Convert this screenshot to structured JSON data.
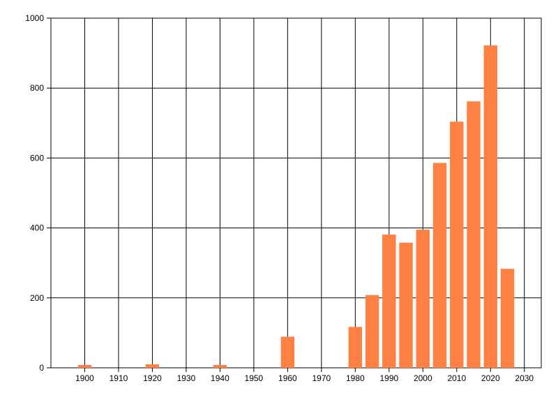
{
  "chart_data": {
    "type": "bar",
    "title": "",
    "xlabel": "",
    "ylabel": "",
    "legend": null,
    "grid": true,
    "background_color": "#ffffff",
    "bar_color": "#FF8043",
    "grid_color": "#000000",
    "text_color": "#000000",
    "xlim": [
      1890,
      2035
    ],
    "ylim": [
      0,
      1000
    ],
    "xticks": [
      1900,
      1910,
      1920,
      1930,
      1940,
      1950,
      1960,
      1970,
      1980,
      1990,
      2000,
      2010,
      2020,
      2030
    ],
    "yticks": [
      0,
      200,
      400,
      600,
      800,
      1000
    ],
    "bar_width_years": 4,
    "points": [
      {
        "x": 1900,
        "y": 8
      },
      {
        "x": 1920,
        "y": 10
      },
      {
        "x": 1940,
        "y": 8
      },
      {
        "x": 1960,
        "y": 89
      },
      {
        "x": 1980,
        "y": 117
      },
      {
        "x": 1985,
        "y": 208
      },
      {
        "x": 1990,
        "y": 381
      },
      {
        "x": 1995,
        "y": 358
      },
      {
        "x": 2000,
        "y": 395
      },
      {
        "x": 2005,
        "y": 586
      },
      {
        "x": 2010,
        "y": 704
      },
      {
        "x": 2015,
        "y": 762
      },
      {
        "x": 2020,
        "y": 922
      },
      {
        "x": 2025,
        "y": 283
      }
    ]
  }
}
